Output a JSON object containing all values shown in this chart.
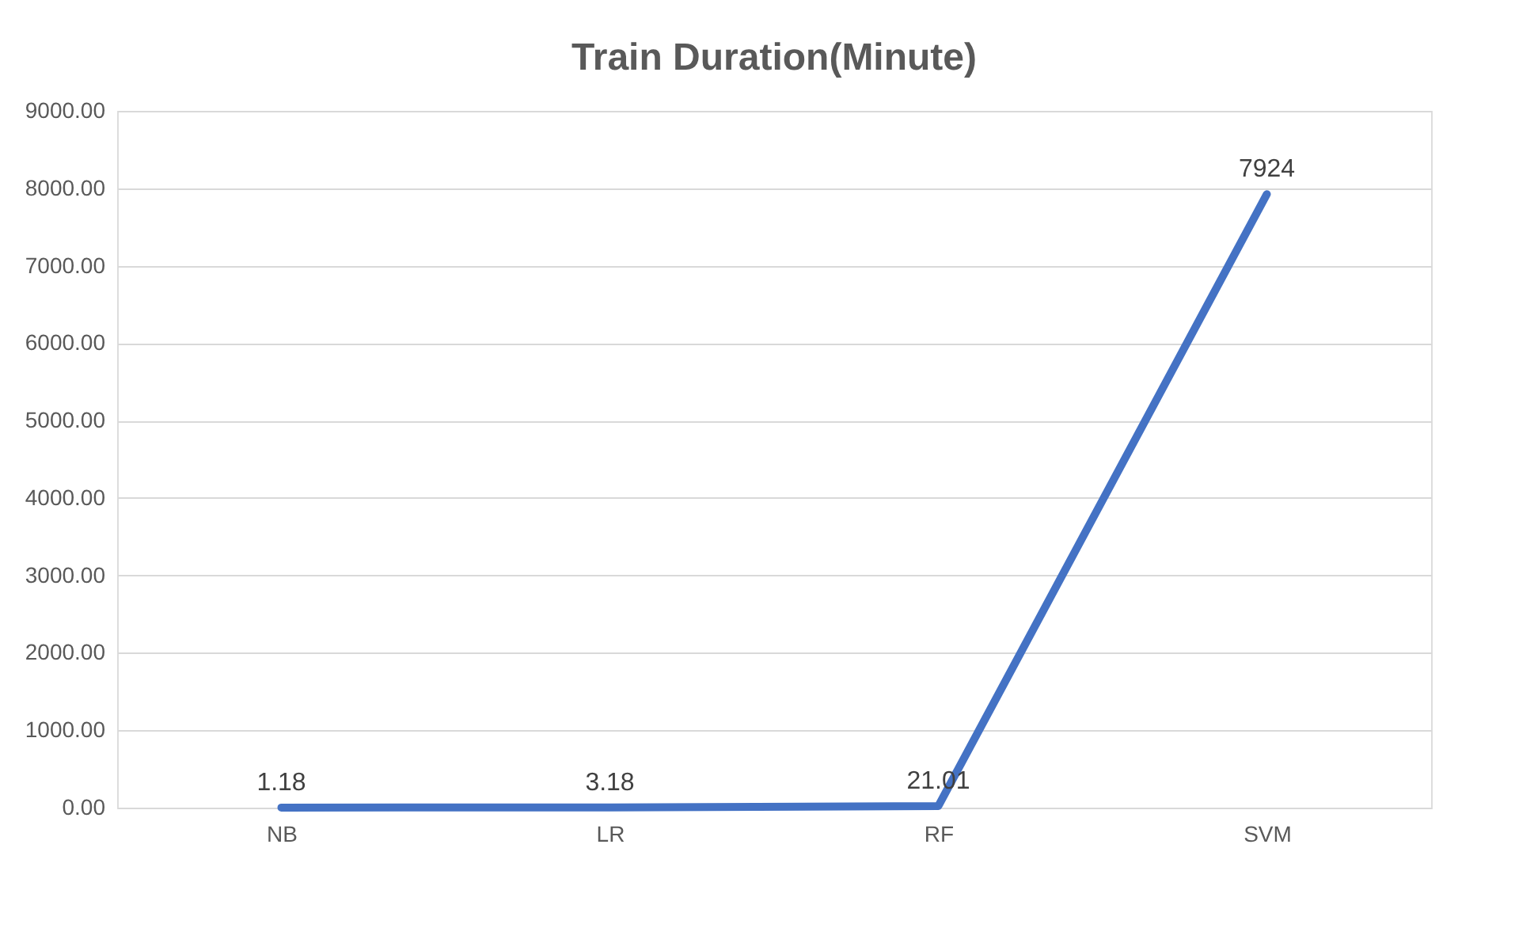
{
  "chart_data": {
    "type": "line",
    "title": "Train Duration(Minute)",
    "categories": [
      "NB",
      "LR",
      "RF",
      "SVM"
    ],
    "series": [
      {
        "color": "#4472c4",
        "values": [
          1.18,
          3.18,
          21.01,
          7924
        ]
      }
    ],
    "ylim": [
      0,
      9000
    ],
    "yticks": [
      {
        "value": 0,
        "label": "0.00"
      },
      {
        "value": 1000,
        "label": "1000.00"
      },
      {
        "value": 2000,
        "label": "2000.00"
      },
      {
        "value": 3000,
        "label": "3000.00"
      },
      {
        "value": 4000,
        "label": "4000.00"
      },
      {
        "value": 5000,
        "label": "5000.00"
      },
      {
        "value": 6000,
        "label": "6000.00"
      },
      {
        "value": 7000,
        "label": "7000.00"
      },
      {
        "value": 8000,
        "label": "8000.00"
      },
      {
        "value": 9000,
        "label": "9000.00"
      }
    ],
    "grid": "y",
    "data_labels": true,
    "marker": "none",
    "line_style": "solid"
  }
}
